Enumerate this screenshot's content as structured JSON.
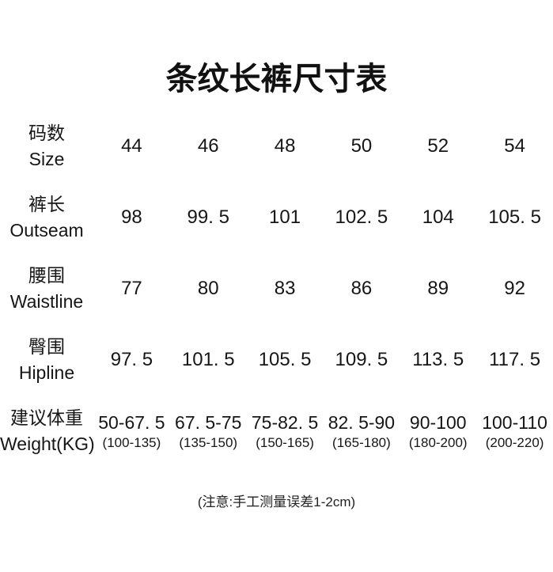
{
  "page": {
    "title": "条纹长裤尺寸表",
    "note": "(注意:手工测量误差1-2cm)"
  },
  "table": {
    "rows": [
      {
        "label_cn": "码数",
        "label_en": "Size",
        "values": [
          "44",
          "46",
          "48",
          "50",
          "52",
          "54"
        ]
      },
      {
        "label_cn": "裤长",
        "label_en": "Outseam",
        "values": [
          "98",
          "99. 5",
          "101",
          "102. 5",
          "104",
          "105. 5"
        ]
      },
      {
        "label_cn": "腰围",
        "label_en": "Waistline",
        "values": [
          "77",
          "80",
          "83",
          "86",
          "89",
          "92"
        ]
      },
      {
        "label_cn": "臀围",
        "label_en": "Hipline",
        "values": [
          "97. 5",
          "101. 5",
          "105. 5",
          "109. 5",
          "113. 5",
          "117. 5"
        ]
      },
      {
        "label_cn": "建议体重",
        "label_en": "Weight(KG)",
        "values": [
          "50-67. 5",
          "67. 5-75",
          "75-82. 5",
          "82. 5-90",
          "90-100",
          "100-110"
        ],
        "sub_values": [
          "(100-135)",
          "(135-150)",
          "(150-165)",
          "(165-180)",
          "(180-200)",
          "(200-220)"
        ]
      }
    ]
  },
  "chart_data": {
    "type": "table",
    "title": "条纹长裤尺寸表",
    "note": "(注意:手工测量误差1-2cm)",
    "columns_cn_en": [
      [
        "码数",
        "Size"
      ],
      [
        "裤长",
        "Outseam"
      ],
      [
        "腰围",
        "Waistline"
      ],
      [
        "臀围",
        "Hipline"
      ],
      [
        "建议体重",
        "Weight(KG)"
      ]
    ],
    "sizes": [
      44,
      46,
      48,
      50,
      52,
      54
    ],
    "outseam_cm": [
      98,
      99.5,
      101,
      102.5,
      104,
      105.5
    ],
    "waistline_cm": [
      77,
      80,
      83,
      86,
      89,
      92
    ],
    "hipline_cm": [
      97.5,
      101.5,
      105.5,
      109.5,
      113.5,
      117.5
    ],
    "weight_kg": [
      "50-67.5",
      "67.5-75",
      "75-82.5",
      "82.5-90",
      "90-100",
      "100-110"
    ],
    "weight_jin": [
      "100-135",
      "135-150",
      "150-165",
      "165-180",
      "180-200",
      "200-220"
    ]
  }
}
